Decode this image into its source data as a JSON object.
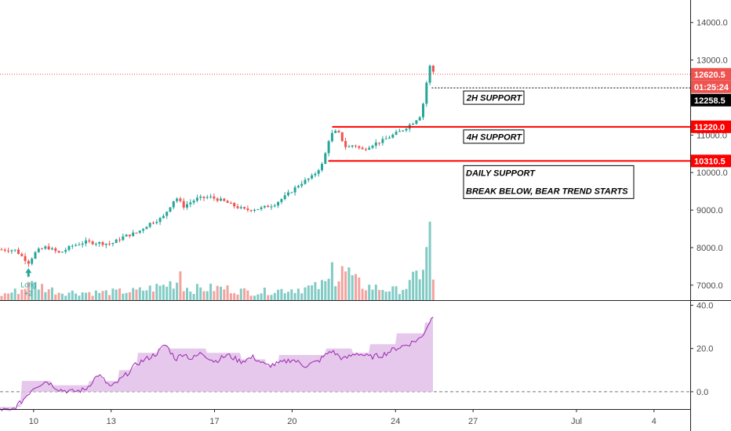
{
  "chart_data": [
    {
      "type": "candlestick",
      "ylim": [
        6600,
        14600
      ],
      "price_ticks": [
        "14000.0",
        "13000.0",
        "12000.0",
        "11000.0",
        "10000.0",
        "9000.0",
        "8000.0",
        "7000.0"
      ],
      "price_tick_values": [
        14000,
        13000,
        12000,
        11000,
        10000,
        9000,
        8000,
        7000
      ],
      "date_ticks": [
        "10",
        "13",
        "17",
        "20",
        "24",
        "27",
        "Jul",
        "4"
      ],
      "date_tick_positions": [
        1.5,
        4.5,
        8.5,
        11.5,
        15.5,
        18.5,
        22.5,
        25.5
      ],
      "xlim": [
        0.2,
        26.9
      ],
      "last_price": 12620.5,
      "last_price_label": "12620.5",
      "countdown_label": "01:25:24",
      "marked_price_label": "12258.5",
      "support_levels": [
        {
          "label": "2H SUPPORT",
          "value": 12258.5,
          "value_label": "12258.5",
          "color": "#000000"
        },
        {
          "label": "4H SUPPORT",
          "value": 11220.0,
          "value_label": "11220.0",
          "color": "#ff0000"
        },
        {
          "label": "DAILY SUPPORT",
          "value": 10310.5,
          "value_label": "10310.5",
          "color": "#ff0000"
        }
      ],
      "note_lines": [
        "DAILY SUPPORT",
        "BREAK BELOW, BEAR TREND STARTS"
      ],
      "signal": {
        "label_line1": "Long",
        "label_line2": "+2",
        "x": 1.3
      },
      "colors": {
        "up": "#26a69a",
        "down": "#ef5350",
        "vol_up": "#82cbc5",
        "vol_down": "#f2a39f",
        "last_price": "#ef5350"
      },
      "price_path": [
        [
          0.2,
          7950
        ],
        [
          0.8,
          7930
        ],
        [
          1.3,
          7600
        ],
        [
          1.6,
          7900
        ],
        [
          2.0,
          8020
        ],
        [
          2.5,
          7850
        ],
        [
          3.0,
          8050
        ],
        [
          3.5,
          8150
        ],
        [
          4.5,
          8100
        ],
        [
          5.0,
          8300
        ],
        [
          5.5,
          8400
        ],
        [
          6.0,
          8650
        ],
        [
          6.5,
          8800
        ],
        [
          7.0,
          9350
        ],
        [
          7.3,
          9100
        ],
        [
          7.8,
          9300
        ],
        [
          8.3,
          9350
        ],
        [
          8.8,
          9250
        ],
        [
          9.3,
          9100
        ],
        [
          9.7,
          9000
        ],
        [
          10.3,
          9050
        ],
        [
          10.8,
          9150
        ],
        [
          11.3,
          9400
        ],
        [
          11.8,
          9700
        ],
        [
          12.3,
          9900
        ],
        [
          12.7,
          10250
        ],
        [
          12.9,
          10850
        ],
        [
          13.1,
          11100
        ],
        [
          13.3,
          11050
        ],
        [
          13.6,
          10650
        ],
        [
          13.9,
          10750
        ],
        [
          14.2,
          10600
        ],
        [
          14.6,
          10750
        ],
        [
          15.0,
          10850
        ],
        [
          15.4,
          11000
        ],
        [
          15.8,
          11150
        ],
        [
          16.2,
          11350
        ],
        [
          16.5,
          11550
        ],
        [
          16.7,
          12400
        ],
        [
          16.85,
          12900
        ],
        [
          17.0,
          12620
        ]
      ],
      "volume_max": 3700,
      "volume_profile": [
        [
          0.2,
          250
        ],
        [
          1.0,
          500
        ],
        [
          1.5,
          800
        ],
        [
          2.5,
          400
        ],
        [
          4.0,
          380
        ],
        [
          5.5,
          450
        ],
        [
          6.5,
          700
        ],
        [
          7.0,
          950
        ],
        [
          7.5,
          550
        ],
        [
          8.8,
          600
        ],
        [
          10.0,
          380
        ],
        [
          11.5,
          550
        ],
        [
          12.5,
          650
        ],
        [
          13.0,
          950
        ],
        [
          13.5,
          1200
        ],
        [
          14.3,
          700
        ],
        [
          14.8,
          600
        ],
        [
          15.5,
          480
        ],
        [
          16.0,
          700
        ],
        [
          16.5,
          1500
        ],
        [
          16.8,
          2600
        ],
        [
          17.0,
          350
        ]
      ],
      "volume_spikes": [
        [
          1.3,
          700
        ],
        [
          7.2,
          1100
        ],
        [
          13.0,
          1450
        ],
        [
          13.4,
          1300
        ],
        [
          13.7,
          1250
        ],
        [
          14.3,
          1100
        ],
        [
          16.75,
          1900
        ],
        [
          16.85,
          3000
        ]
      ]
    },
    {
      "type": "area",
      "ylim": [
        -8,
        42
      ],
      "ticks": [
        "40.0",
        "20.0",
        "0.0"
      ],
      "tick_values": [
        40,
        20,
        0
      ],
      "colors": {
        "line": "#9c27b0",
        "fill": "#e1bee7"
      },
      "line": [
        [
          0.2,
          -8
        ],
        [
          0.6,
          -9
        ],
        [
          1.0,
          -5
        ],
        [
          1.5,
          2
        ],
        [
          2.0,
          5
        ],
        [
          2.5,
          1
        ],
        [
          3.0,
          0
        ],
        [
          3.5,
          1
        ],
        [
          4.0,
          8
        ],
        [
          4.5,
          2
        ],
        [
          5.0,
          7
        ],
        [
          5.5,
          13
        ],
        [
          6.0,
          16
        ],
        [
          6.3,
          18
        ],
        [
          6.6,
          22
        ],
        [
          7.0,
          15
        ],
        [
          7.3,
          18
        ],
        [
          7.6,
          15
        ],
        [
          8.0,
          18
        ],
        [
          8.5,
          14
        ],
        [
          9.0,
          17
        ],
        [
          9.5,
          14
        ],
        [
          10.0,
          16
        ],
        [
          10.5,
          12
        ],
        [
          11.0,
          13
        ],
        [
          11.5,
          15
        ],
        [
          12.0,
          12
        ],
        [
          12.5,
          14
        ],
        [
          13.0,
          19
        ],
        [
          13.5,
          15
        ],
        [
          14.0,
          18
        ],
        [
          14.5,
          16
        ],
        [
          15.0,
          17
        ],
        [
          15.5,
          20
        ],
        [
          16.0,
          22
        ],
        [
          16.5,
          25
        ],
        [
          16.8,
          32
        ],
        [
          17.0,
          36
        ]
      ],
      "cloud_steps": [
        [
          0.2,
          -7
        ],
        [
          1.0,
          5
        ],
        [
          2.2,
          3
        ],
        [
          3.6,
          5
        ],
        [
          4.8,
          10
        ],
        [
          5.5,
          18
        ],
        [
          6.3,
          20
        ],
        [
          7.8,
          20
        ],
        [
          8.2,
          18
        ],
        [
          9.5,
          15
        ],
        [
          10.5,
          12
        ],
        [
          11.0,
          17
        ],
        [
          12.0,
          17
        ],
        [
          12.8,
          20
        ],
        [
          13.8,
          18
        ],
        [
          14.5,
          22
        ],
        [
          15.5,
          27
        ],
        [
          16.6,
          32
        ],
        [
          17.0,
          32
        ]
      ]
    }
  ]
}
